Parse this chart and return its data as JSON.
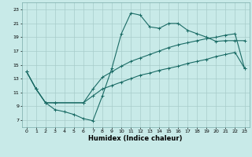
{
  "xlabel": "Humidex (Indice chaleur)",
  "bg_color": "#c8eae8",
  "grid_color": "#a8ccca",
  "line_color": "#1a6b65",
  "xlim": [
    -0.5,
    23.5
  ],
  "ylim": [
    6.0,
    24.0
  ],
  "xticks": [
    0,
    1,
    2,
    3,
    4,
    5,
    6,
    7,
    8,
    9,
    10,
    11,
    12,
    13,
    14,
    15,
    16,
    17,
    18,
    19,
    20,
    21,
    22,
    23
  ],
  "yticks": [
    7,
    9,
    11,
    13,
    15,
    17,
    19,
    21,
    23
  ],
  "line1_x": [
    0,
    1,
    2,
    3,
    4,
    5,
    6,
    7,
    8,
    9,
    10,
    11,
    12,
    13,
    14,
    15,
    16,
    17,
    18,
    19,
    20,
    21,
    22,
    23
  ],
  "line1_y": [
    14,
    11.5,
    9.5,
    8.5,
    8.2,
    7.8,
    7.2,
    6.9,
    10.5,
    14.5,
    19.5,
    22.5,
    22.2,
    20.5,
    20.3,
    21.0,
    21.0,
    20.0,
    19.5,
    19.0,
    18.4,
    18.5,
    18.5,
    18.5
  ],
  "line2_x": [
    0,
    1,
    2,
    3,
    6,
    7,
    8,
    9,
    10,
    11,
    12,
    13,
    14,
    15,
    16,
    17,
    18,
    19,
    20,
    21,
    22,
    23
  ],
  "line2_y": [
    14,
    11.5,
    9.5,
    9.5,
    9.5,
    11.5,
    13.2,
    14.0,
    14.8,
    15.5,
    16.0,
    16.5,
    17.0,
    17.5,
    17.9,
    18.2,
    18.5,
    18.8,
    19.0,
    19.3,
    19.5,
    14.5
  ],
  "line3_x": [
    0,
    1,
    2,
    3,
    6,
    7,
    8,
    9,
    10,
    11,
    12,
    13,
    14,
    15,
    16,
    17,
    18,
    19,
    20,
    21,
    22,
    23
  ],
  "line3_y": [
    14,
    11.5,
    9.5,
    9.5,
    9.5,
    10.5,
    11.5,
    12.0,
    12.5,
    13.0,
    13.5,
    13.8,
    14.2,
    14.5,
    14.8,
    15.2,
    15.5,
    15.8,
    16.2,
    16.5,
    16.8,
    14.5
  ]
}
